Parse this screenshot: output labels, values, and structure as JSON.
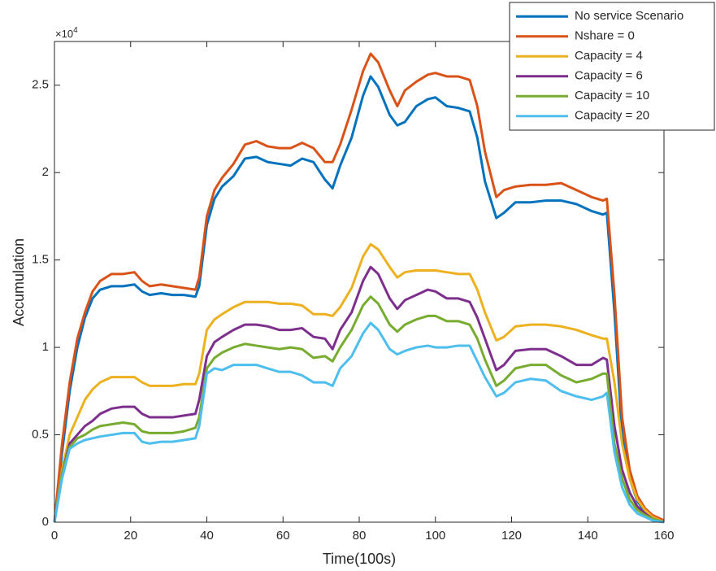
{
  "chart_data": {
    "type": "line",
    "xlabel": "Time(100s)",
    "ylabel": "Accumulation",
    "y_multiplier": {
      "base": "×10",
      "exponent": "4"
    },
    "x": [
      0,
      2,
      4,
      6,
      8,
      10,
      12,
      15,
      18,
      21,
      23,
      25,
      28,
      31,
      34,
      37,
      38,
      40,
      42,
      44,
      47,
      50,
      53,
      56,
      59,
      62,
      65,
      68,
      71,
      73,
      75,
      78,
      81,
      83,
      85,
      88,
      90,
      92,
      95,
      98,
      100,
      103,
      106,
      109,
      111,
      113,
      116,
      118,
      121,
      125,
      129,
      133,
      137,
      141,
      144,
      145,
      147,
      149,
      151,
      153,
      155,
      157,
      160
    ],
    "series": [
      {
        "name": "No service Scenario",
        "color": "#0072bd",
        "values": [
          0,
          0.4,
          0.75,
          1.0,
          1.17,
          1.28,
          1.33,
          1.35,
          1.35,
          1.36,
          1.32,
          1.3,
          1.31,
          1.3,
          1.3,
          1.29,
          1.35,
          1.7,
          1.85,
          1.92,
          1.98,
          2.08,
          2.09,
          2.06,
          2.05,
          2.04,
          2.08,
          2.06,
          1.96,
          1.91,
          2.04,
          2.2,
          2.44,
          2.55,
          2.49,
          2.33,
          2.27,
          2.29,
          2.38,
          2.42,
          2.43,
          2.38,
          2.37,
          2.35,
          2.2,
          1.95,
          1.74,
          1.77,
          1.83,
          1.83,
          1.84,
          1.84,
          1.82,
          1.78,
          1.76,
          1.77,
          1.2,
          0.5,
          0.25,
          0.12,
          0.06,
          0.03,
          0
        ]
      },
      {
        "name": "Nshare = 0",
        "color": "#d95319",
        "values": [
          0,
          0.45,
          0.8,
          1.05,
          1.2,
          1.32,
          1.38,
          1.42,
          1.42,
          1.43,
          1.38,
          1.35,
          1.36,
          1.35,
          1.34,
          1.33,
          1.4,
          1.75,
          1.9,
          1.97,
          2.05,
          2.16,
          2.18,
          2.15,
          2.14,
          2.14,
          2.17,
          2.14,
          2.06,
          2.06,
          2.16,
          2.36,
          2.58,
          2.68,
          2.63,
          2.47,
          2.38,
          2.47,
          2.52,
          2.56,
          2.57,
          2.55,
          2.55,
          2.53,
          2.38,
          2.12,
          1.86,
          1.9,
          1.92,
          1.93,
          1.93,
          1.94,
          1.9,
          1.86,
          1.84,
          1.85,
          1.3,
          0.6,
          0.3,
          0.15,
          0.08,
          0.04,
          0.01
        ]
      },
      {
        "name": "Capacity = 4",
        "color": "#edb120",
        "values": [
          0,
          0.3,
          0.5,
          0.6,
          0.7,
          0.76,
          0.8,
          0.83,
          0.83,
          0.83,
          0.8,
          0.78,
          0.78,
          0.78,
          0.79,
          0.79,
          0.85,
          1.1,
          1.16,
          1.19,
          1.23,
          1.26,
          1.26,
          1.26,
          1.25,
          1.25,
          1.24,
          1.19,
          1.19,
          1.18,
          1.23,
          1.34,
          1.52,
          1.59,
          1.56,
          1.46,
          1.4,
          1.43,
          1.44,
          1.44,
          1.44,
          1.43,
          1.42,
          1.42,
          1.33,
          1.2,
          1.04,
          1.06,
          1.12,
          1.13,
          1.13,
          1.12,
          1.1,
          1.07,
          1.05,
          1.05,
          0.8,
          0.45,
          0.25,
          0.13,
          0.07,
          0.03,
          0
        ]
      },
      {
        "name": "Capacity = 6",
        "color": "#7e2f8e",
        "values": [
          0,
          0.28,
          0.45,
          0.5,
          0.55,
          0.58,
          0.62,
          0.65,
          0.66,
          0.66,
          0.62,
          0.6,
          0.6,
          0.6,
          0.61,
          0.62,
          0.7,
          0.95,
          1.03,
          1.06,
          1.1,
          1.13,
          1.13,
          1.12,
          1.1,
          1.1,
          1.11,
          1.06,
          1.05,
          0.99,
          1.1,
          1.2,
          1.38,
          1.46,
          1.42,
          1.28,
          1.22,
          1.27,
          1.3,
          1.33,
          1.32,
          1.28,
          1.28,
          1.26,
          1.17,
          1.05,
          0.87,
          0.9,
          0.98,
          0.99,
          0.99,
          0.95,
          0.9,
          0.9,
          0.94,
          0.93,
          0.55,
          0.3,
          0.17,
          0.09,
          0.05,
          0.02,
          0
        ]
      },
      {
        "name": "Capacity = 10",
        "color": "#77ac30",
        "values": [
          0,
          0.28,
          0.43,
          0.48,
          0.5,
          0.53,
          0.55,
          0.56,
          0.57,
          0.56,
          0.52,
          0.51,
          0.51,
          0.51,
          0.52,
          0.54,
          0.6,
          0.88,
          0.94,
          0.97,
          1.0,
          1.02,
          1.01,
          1.0,
          0.99,
          1.0,
          0.99,
          0.94,
          0.95,
          0.92,
          1.0,
          1.1,
          1.24,
          1.29,
          1.25,
          1.13,
          1.09,
          1.13,
          1.16,
          1.18,
          1.18,
          1.15,
          1.15,
          1.13,
          1.05,
          0.93,
          0.78,
          0.81,
          0.88,
          0.9,
          0.9,
          0.84,
          0.8,
          0.82,
          0.85,
          0.85,
          0.45,
          0.25,
          0.13,
          0.07,
          0.04,
          0.02,
          0
        ]
      },
      {
        "name": "Capacity = 20",
        "color": "#4dbeee",
        "values": [
          0,
          0.25,
          0.42,
          0.45,
          0.47,
          0.48,
          0.49,
          0.5,
          0.51,
          0.51,
          0.46,
          0.45,
          0.46,
          0.46,
          0.47,
          0.48,
          0.55,
          0.85,
          0.88,
          0.87,
          0.9,
          0.9,
          0.9,
          0.88,
          0.86,
          0.86,
          0.84,
          0.8,
          0.8,
          0.78,
          0.88,
          0.95,
          1.08,
          1.14,
          1.1,
          0.99,
          0.96,
          0.98,
          1.0,
          1.01,
          1.0,
          1.0,
          1.01,
          1.01,
          0.92,
          0.83,
          0.72,
          0.74,
          0.8,
          0.82,
          0.81,
          0.75,
          0.72,
          0.7,
          0.72,
          0.74,
          0.4,
          0.2,
          0.1,
          0.05,
          0.03,
          0.01,
          0
        ]
      }
    ],
    "xlim": [
      0,
      160
    ],
    "xticks": [
      0,
      20,
      40,
      60,
      80,
      100,
      120,
      140,
      160
    ],
    "ylim": [
      0,
      2.75
    ],
    "yticks": [
      0,
      0.5,
      1,
      1.5,
      2,
      2.5
    ],
    "grid": false,
    "legend_position": "northeast-outside"
  }
}
